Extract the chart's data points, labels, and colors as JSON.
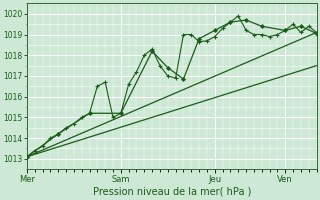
{
  "bg_color": "#cde8d4",
  "grid_color": "#ffffff",
  "line_color": "#1a5c1a",
  "title": "Pression niveau de la mer( hPa )",
  "ylim": [
    1012.5,
    1020.5
  ],
  "yticks": [
    1013,
    1014,
    1015,
    1016,
    1017,
    1018,
    1019,
    1020
  ],
  "day_labels": [
    "Mer",
    "Sam",
    "Jeu",
    "Ven"
  ],
  "day_positions": [
    0,
    24,
    48,
    66
  ],
  "xlim": [
    0,
    74
  ],
  "line1_x": [
    0,
    2,
    4,
    6,
    8,
    10,
    12,
    14,
    16,
    18,
    20,
    22,
    24,
    26,
    28,
    30,
    32,
    34,
    36,
    38,
    40,
    42,
    44,
    46,
    48,
    50,
    52,
    54,
    56,
    58,
    60,
    62,
    64,
    66,
    68,
    70,
    72,
    74
  ],
  "line1_y": [
    1013.1,
    1013.4,
    1013.6,
    1014.0,
    1014.2,
    1014.5,
    1014.7,
    1015.0,
    1015.2,
    1016.5,
    1016.7,
    1015.0,
    1015.2,
    1016.6,
    1017.2,
    1018.0,
    1018.3,
    1017.5,
    1017.0,
    1016.9,
    1019.0,
    1019.0,
    1018.65,
    1018.7,
    1018.9,
    1019.3,
    1019.6,
    1019.9,
    1019.2,
    1019.0,
    1019.0,
    1018.9,
    1019.0,
    1019.2,
    1019.5,
    1019.1,
    1019.4,
    1019.1
  ],
  "line2_x": [
    0,
    8,
    16,
    24,
    32,
    36,
    40,
    44,
    48,
    52,
    56,
    60,
    66,
    70,
    74
  ],
  "line2_y": [
    1013.1,
    1014.2,
    1015.2,
    1015.2,
    1018.2,
    1017.4,
    1016.85,
    1018.8,
    1019.2,
    1019.6,
    1019.7,
    1019.4,
    1019.2,
    1019.4,
    1019.05
  ],
  "trend1_x": [
    0,
    74
  ],
  "trend1_y": [
    1013.1,
    1017.5
  ],
  "trend2_x": [
    0,
    74
  ],
  "trend2_y": [
    1013.1,
    1019.1
  ]
}
